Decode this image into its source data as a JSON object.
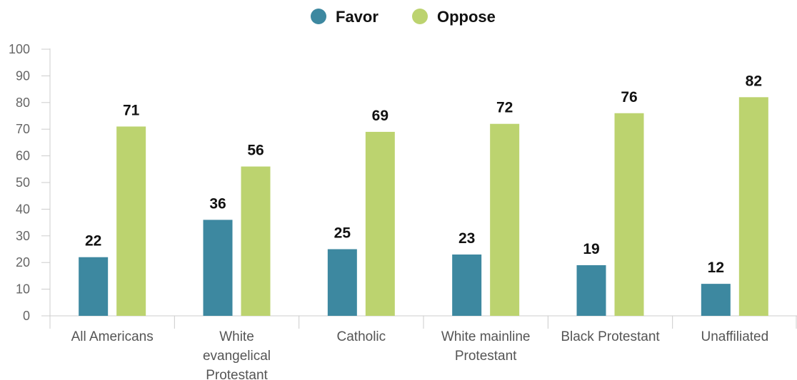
{
  "chart_data": {
    "type": "bar",
    "title": "",
    "xlabel": "",
    "ylabel": "",
    "ylim": [
      0,
      100
    ],
    "yticks": [
      0,
      10,
      20,
      30,
      40,
      50,
      60,
      70,
      80,
      90,
      100
    ],
    "grid": false,
    "legend_position": "top-center",
    "categories": [
      [
        "All Americans"
      ],
      [
        "White",
        "evangelical",
        "Protestant"
      ],
      [
        "Catholic"
      ],
      [
        "White mainline",
        "Protestant"
      ],
      [
        "Black Protestant"
      ],
      [
        "Unaffiliated"
      ]
    ],
    "series": [
      {
        "name": "Favor",
        "color": "#3d88a0",
        "values": [
          22,
          36,
          25,
          23,
          19,
          12
        ]
      },
      {
        "name": "Oppose",
        "color": "#bcd36f",
        "values": [
          71,
          56,
          69,
          72,
          76,
          82
        ]
      }
    ]
  }
}
